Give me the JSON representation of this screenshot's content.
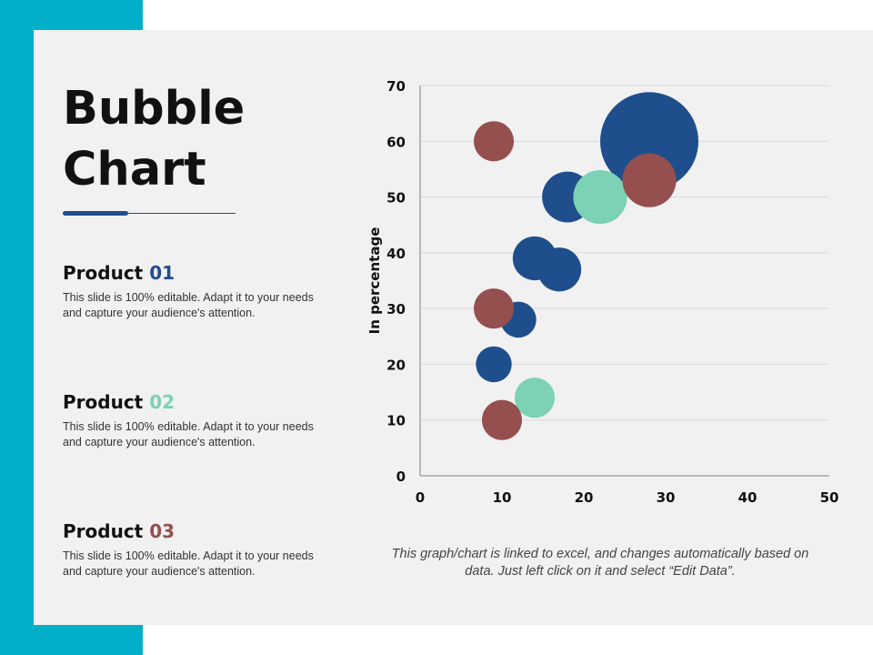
{
  "slide": {
    "title_line1": "Bubble",
    "title_line2": "Chart",
    "caption": "This graph/chart is linked to excel, and changes automatically based on data. Just left click on it and select “Edit Data”."
  },
  "products": [
    {
      "name": "Product",
      "number": "01",
      "color": "#1f4e8c",
      "desc": "This slide is 100% editable. Adapt it to your needs and capture your audience's attention."
    },
    {
      "name": "Product",
      "number": "02",
      "color": "#7dd1b4",
      "desc": "This slide is 100% editable. Adapt it to your needs and capture your audience's attention."
    },
    {
      "name": "Product",
      "number": "03",
      "color": "#954f4f",
      "desc": "This slide is 100% editable. Adapt it to your needs and capture your audience's attention."
    }
  ],
  "colors": {
    "accent": "#00b0c8",
    "panel": "#f1f1f1",
    "series1": "#1f4e8c",
    "series2": "#7dd1b4",
    "series3": "#954f4f"
  },
  "chart_data": {
    "type": "scatter",
    "subtype": "bubble",
    "title": "",
    "xlabel": "",
    "ylabel": "In percentage",
    "xlim": [
      0,
      50
    ],
    "ylim": [
      0,
      70
    ],
    "xticks": [
      "0",
      "10",
      "20",
      "30",
      "40",
      "50"
    ],
    "yticks": [
      "0",
      "10",
      "20",
      "30",
      "40",
      "50",
      "60",
      "70"
    ],
    "grid": "horizontal",
    "series": [
      {
        "name": "Product 01",
        "color": "#1f4e8c",
        "points": [
          {
            "x": 28,
            "y": 60,
            "size": 30
          },
          {
            "x": 18,
            "y": 50,
            "size": 8
          },
          {
            "x": 14,
            "y": 39,
            "size": 6
          },
          {
            "x": 17,
            "y": 37,
            "size": 6
          },
          {
            "x": 12,
            "y": 28,
            "size": 4
          },
          {
            "x": 9,
            "y": 20,
            "size": 4
          }
        ]
      },
      {
        "name": "Product 02",
        "color": "#7dd1b4",
        "points": [
          {
            "x": 22,
            "y": 50,
            "size": 9
          },
          {
            "x": 14,
            "y": 14,
            "size": 5
          }
        ]
      },
      {
        "name": "Product 03",
        "color": "#954f4f",
        "points": [
          {
            "x": 9,
            "y": 60,
            "size": 5
          },
          {
            "x": 28,
            "y": 53,
            "size": 9
          },
          {
            "x": 9,
            "y": 30,
            "size": 5
          },
          {
            "x": 10,
            "y": 10,
            "size": 5
          }
        ]
      }
    ]
  }
}
